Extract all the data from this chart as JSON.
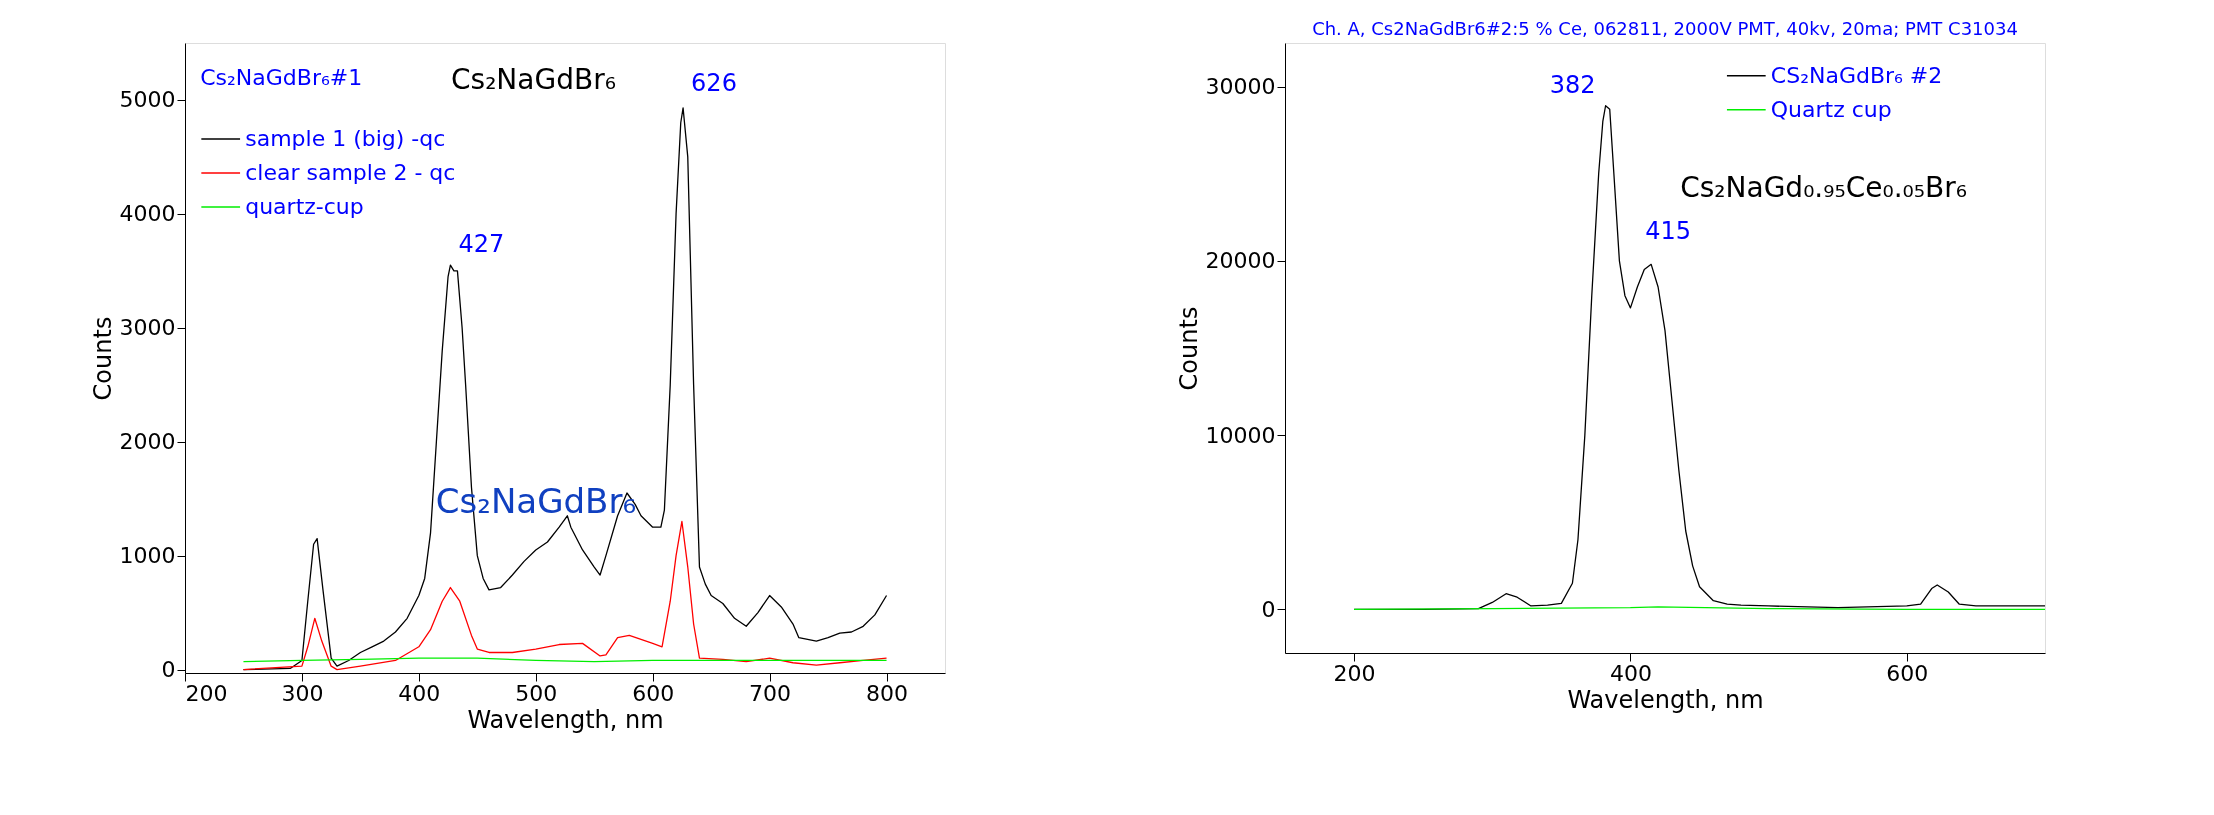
{
  "chart_data": [
    {
      "type": "line",
      "xlabel": "Wavelength, nm",
      "ylabel": "Counts",
      "xlim": [
        200,
        850
      ],
      "xticks": [
        200,
        300,
        400,
        500,
        600,
        700,
        800
      ],
      "ylim": [
        -30,
        5500
      ],
      "yticks": [
        0,
        1000,
        2000,
        3000,
        4000,
        5000
      ],
      "grid": false,
      "legend": "top left",
      "annotations": [
        "Cs₂NaGdBr₆#1",
        "Cs₂NaGdBr₆",
        {
          "text": "626",
          "x": 626,
          "y": 4930
        },
        {
          "text": "427",
          "x": 427,
          "y": 3550
        },
        "Cs₂NaGdBr₆"
      ],
      "series": [
        {
          "name": "sample 1 (big) -qc",
          "color": "#000000",
          "x": [
            250,
            290,
            300,
            305,
            310,
            313,
            318,
            325,
            330,
            340,
            350,
            360,
            370,
            380,
            390,
            400,
            405,
            410,
            415,
            420,
            425,
            427,
            430,
            433,
            437,
            440,
            445,
            450,
            455,
            460,
            470,
            480,
            490,
            500,
            510,
            520,
            527,
            530,
            540,
            550,
            555,
            560,
            570,
            578,
            585,
            590,
            600,
            607,
            610,
            615,
            620,
            624,
            626,
            630,
            635,
            640,
            645,
            650,
            660,
            670,
            680,
            690,
            700,
            710,
            720,
            725,
            740,
            750,
            760,
            770,
            780,
            790,
            800
          ],
          "values": [
            0,
            10,
            80,
            600,
            1100,
            1150,
            700,
            100,
            30,
            80,
            150,
            200,
            250,
            330,
            450,
            650,
            800,
            1200,
            2000,
            2800,
            3450,
            3550,
            3500,
            3500,
            3000,
            2500,
            1600,
            1000,
            800,
            700,
            720,
            830,
            950,
            1050,
            1120,
            1250,
            1350,
            1250,
            1050,
            900,
            830,
            1000,
            1350,
            1550,
            1450,
            1350,
            1250,
            1250,
            1400,
            2500,
            4000,
            4800,
            4930,
            4500,
            2500,
            900,
            750,
            650,
            580,
            450,
            380,
            500,
            650,
            550,
            400,
            280,
            250,
            280,
            320,
            330,
            380,
            480,
            650
          ]
        },
        {
          "name": "clear sample 2 - qc",
          "color": "#ff0000",
          "x": [
            250,
            300,
            305,
            311,
            317,
            325,
            330,
            350,
            380,
            400,
            410,
            420,
            427,
            435,
            445,
            450,
            460,
            480,
            500,
            520,
            540,
            555,
            560,
            570,
            580,
            600,
            608,
            615,
            620,
            625,
            630,
            635,
            640,
            660,
            680,
            700,
            720,
            740,
            760,
            780,
            800
          ],
          "values": [
            0,
            30,
            200,
            450,
            250,
            30,
            0,
            30,
            80,
            200,
            350,
            600,
            720,
            600,
            300,
            180,
            150,
            150,
            180,
            220,
            230,
            120,
            130,
            280,
            300,
            230,
            200,
            600,
            1000,
            1300,
            900,
            400,
            100,
            90,
            70,
            100,
            60,
            40,
            60,
            80,
            100
          ]
        },
        {
          "name": "quartz-cup",
          "color": "#00ee00",
          "x": [
            250,
            300,
            350,
            400,
            450,
            500,
            550,
            600,
            650,
            700,
            750,
            800
          ],
          "values": [
            70,
            80,
            90,
            100,
            100,
            80,
            70,
            80,
            80,
            80,
            80,
            80
          ]
        }
      ]
    },
    {
      "type": "line",
      "title": "Ch. A, Cs2NaGdBr6#2:5 % Ce, 062811, 2000V PMT, 40kv, 20ma; PMT C31034",
      "xlabel": "Wavelength, nm",
      "ylabel": "Counts",
      "xlim": [
        150,
        700
      ],
      "xticks": [
        200,
        400,
        600
      ],
      "ylim": [
        -2500,
        32500
      ],
      "yticks": [
        0,
        10000,
        20000,
        30000
      ],
      "grid": false,
      "legend": "top right",
      "annotations": [
        {
          "text": "382",
          "x": 382,
          "y": 28900
        },
        {
          "text": "415",
          "x": 415,
          "y": 19800
        },
        "Cs₂NaGd₀.₉₅Ce₀.₀₅Br₆"
      ],
      "series": [
        {
          "name": "CS₂NaGdBr₆ #2",
          "color": "#000000",
          "x": [
            200,
            250,
            290,
            300,
            310,
            318,
            328,
            340,
            350,
            358,
            362,
            367,
            372,
            377,
            380,
            382,
            385,
            388,
            392,
            396,
            400,
            405,
            410,
            415,
            420,
            425,
            430,
            435,
            440,
            445,
            450,
            460,
            470,
            480,
            500,
            550,
            600,
            610,
            618,
            622,
            630,
            638,
            650,
            700
          ],
          "values": [
            0,
            0,
            50,
            400,
            900,
            700,
            200,
            250,
            350,
            1500,
            4000,
            10000,
            18000,
            25000,
            28000,
            28900,
            28700,
            25000,
            20000,
            18000,
            17300,
            18500,
            19500,
            19800,
            18500,
            16000,
            12000,
            8000,
            4500,
            2500,
            1300,
            500,
            300,
            250,
            200,
            100,
            200,
            300,
            1200,
            1400,
            1000,
            300,
            200,
            200
          ]
        },
        {
          "name": "Quartz cup",
          "color": "#00ee00",
          "x": [
            200,
            300,
            400,
            420,
            500,
            600,
            700
          ],
          "values": [
            0,
            50,
            100,
            150,
            50,
            0,
            0
          ]
        }
      ]
    }
  ]
}
